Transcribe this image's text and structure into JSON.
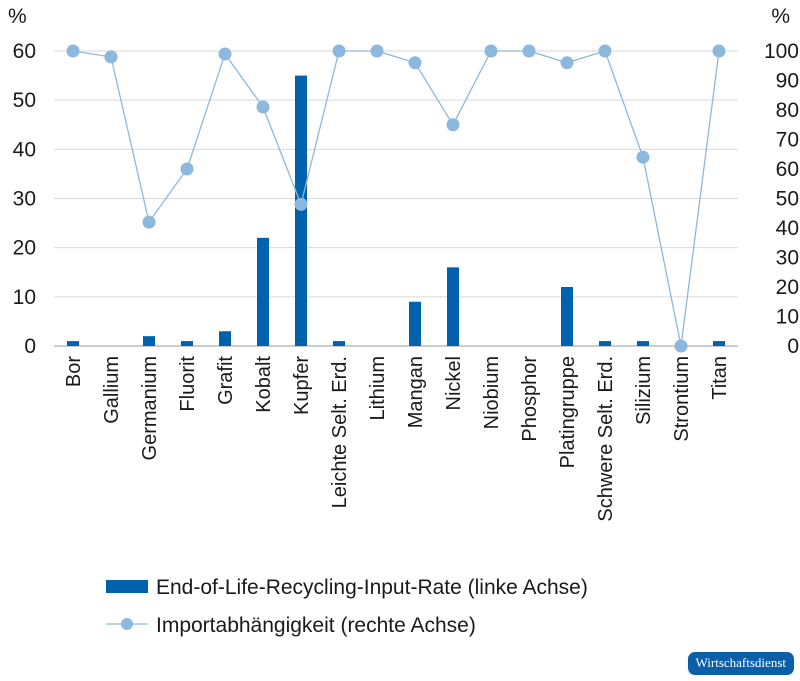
{
  "chart_data": {
    "type": "bar+line",
    "left_axis": {
      "unit_label": "%",
      "ylim": [
        0,
        60
      ],
      "ticks": [
        0,
        10,
        20,
        30,
        40,
        50,
        60
      ]
    },
    "right_axis": {
      "unit_label": "%",
      "ylim": [
        0,
        100
      ],
      "ticks": [
        0,
        10,
        20,
        30,
        40,
        50,
        60,
        70,
        80,
        90,
        100
      ]
    },
    "categories": [
      "Bor",
      "Gallium",
      "Germanium",
      "Fluorit",
      "Grafit",
      "Kobalt",
      "Kupfer",
      "Leichte Selt. Erd.",
      "Lithium",
      "Mangan",
      "Nickel",
      "Niobium",
      "Phosphor",
      "Platingruppe",
      "Schwere Selt. Erd.",
      "Silizium",
      "Strontium",
      "Titan"
    ],
    "series": [
      {
        "name": "End-of-Life-Recycling-Input-Rate (linke Achse)",
        "type": "bar",
        "axis": "left",
        "color": "#0061ad",
        "values": [
          1,
          0,
          2,
          1,
          3,
          22,
          55,
          1,
          0,
          9,
          16,
          0,
          0,
          12,
          1,
          1,
          0,
          1
        ]
      },
      {
        "name": "Importabhängigkeit (rechte Achse)",
        "type": "line",
        "axis": "right",
        "color": "#8db8dd",
        "values": [
          100,
          98,
          42,
          60,
          99,
          81,
          48,
          100,
          100,
          96,
          75,
          100,
          100,
          96,
          100,
          64,
          0,
          100
        ]
      }
    ],
    "grid": true,
    "legend": "bottom"
  },
  "brand": {
    "label": "Wirtschaftsdienst",
    "color": "#0b5ea8"
  }
}
